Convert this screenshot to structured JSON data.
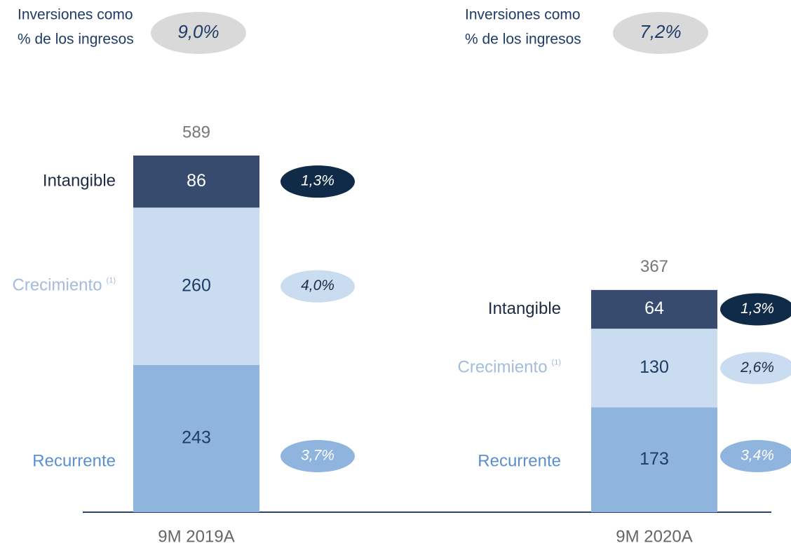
{
  "chart_data": {
    "type": "bar",
    "stacked": true,
    "ratio_label": [
      "Inversiones como",
      "% de los ingresos"
    ],
    "ratios": [
      9.0,
      7.2
    ],
    "ratio_labels": [
      "9,0%",
      "7,2%"
    ],
    "categories": [
      "9M 2019A",
      "9M 2020A"
    ],
    "totals": [
      589,
      367
    ],
    "series": [
      {
        "name": "Recurrente",
        "color": "#8fb4de",
        "label_color": "#5b8fcd",
        "values": [
          243,
          173
        ],
        "shares": [
          3.7,
          3.4
        ],
        "share_labels": [
          "3,7%",
          "3,4%"
        ]
      },
      {
        "name": "Crecimiento",
        "note": "(1)",
        "color": "#c9dcf0",
        "label_color": "#a3bcdb",
        "values": [
          260,
          130
        ],
        "shares": [
          4.0,
          2.6
        ],
        "share_labels": [
          "4,0%",
          "2,6%"
        ]
      },
      {
        "name": "Intangible",
        "color": "#364b6d",
        "label_color": "#1d2b45",
        "values": [
          86,
          64
        ],
        "shares": [
          1.3,
          1.3
        ],
        "share_labels": [
          "1,3%",
          "1,3%"
        ]
      }
    ]
  }
}
